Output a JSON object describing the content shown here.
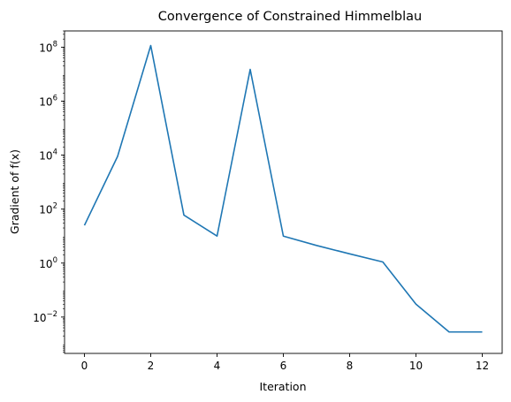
{
  "chart_data": {
    "type": "line",
    "title": "Convergence of Constrained Himmelblau",
    "xlabel": "Iteration",
    "ylabel": "Gradient of f(x)",
    "yscale": "log",
    "xlim": [
      -0.6,
      12.6
    ],
    "ylim": [
      0.00045,
      400000000
    ],
    "grid": false,
    "x_ticks": [
      0,
      2,
      4,
      6,
      8,
      10,
      12
    ],
    "y_ticks": [
      {
        "value": 100000000,
        "base": "10",
        "exponent": "8"
      },
      {
        "value": 1000000,
        "base": "10",
        "exponent": "6"
      },
      {
        "value": 10000,
        "base": "10",
        "exponent": "4"
      },
      {
        "value": 100,
        "base": "10",
        "exponent": "2"
      },
      {
        "value": 1,
        "base": "10",
        "exponent": "0"
      },
      {
        "value": 0.01,
        "base": "10",
        "exponent": "−2"
      }
    ],
    "series": [
      {
        "color": "#1f77b4",
        "x": [
          0,
          1,
          2,
          3,
          4,
          5,
          6,
          7,
          8,
          9,
          10,
          11,
          12
        ],
        "y": [
          25,
          9000,
          115000000,
          60,
          10,
          15000000,
          10,
          4.5,
          2.2,
          1.1,
          0.03,
          0.0028,
          0.0028
        ]
      }
    ]
  }
}
